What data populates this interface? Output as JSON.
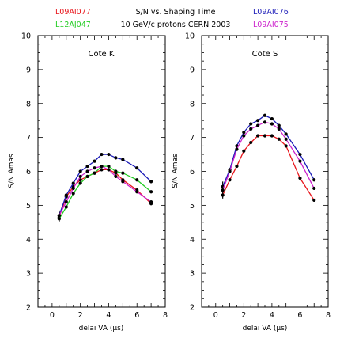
{
  "header": {
    "title": "S/N vs. Shaping Time",
    "subtitle": "10 GeV/c protons CERN 2003",
    "legend": [
      {
        "label": "L09AI077",
        "color": "#e8151b",
        "pos": "left-top"
      },
      {
        "label": "L12AJ047",
        "color": "#22cc22",
        "pos": "left-bottom"
      },
      {
        "label": "L09AI076",
        "color": "#1b1bb8",
        "pos": "right-top"
      },
      {
        "label": "L09AI075",
        "color": "#cc22cc",
        "pos": "right-bottom"
      }
    ]
  },
  "chart_data": [
    {
      "type": "line",
      "title": "Cote K",
      "xlabel": "delai VA (µs)",
      "ylabel": "S/N Amas",
      "xlim": [
        -1,
        8
      ],
      "ylim": [
        2,
        10
      ],
      "xticks": [
        0,
        2,
        4,
        6,
        8
      ],
      "yticks": [
        2,
        3,
        4,
        5,
        6,
        7,
        8,
        9,
        10
      ],
      "grid": false,
      "series": [
        {
          "name": "L09AI077",
          "color": "#e8151b",
          "x": [
            0.5,
            1.0,
            1.5,
            2.0,
            2.5,
            3.0,
            3.5,
            4.0,
            4.5,
            5.0,
            6.0,
            7.0
          ],
          "y": [
            4.65,
            5.25,
            5.55,
            5.75,
            5.85,
            5.95,
            6.05,
            6.05,
            5.95,
            5.75,
            5.45,
            5.05
          ]
        },
        {
          "name": "L12AJ047",
          "color": "#22cc22",
          "x": [
            0.5,
            1.0,
            1.5,
            2.0,
            2.5,
            3.0,
            3.5,
            4.0,
            4.5,
            5.0,
            6.0,
            7.0
          ],
          "y": [
            4.6,
            4.95,
            5.35,
            5.65,
            5.85,
            5.95,
            6.15,
            6.15,
            6.0,
            5.95,
            5.75,
            5.4
          ]
        },
        {
          "name": "L09AI076",
          "color": "#1b1bb8",
          "x": [
            0.5,
            1.0,
            1.5,
            2.0,
            2.5,
            3.0,
            3.5,
            4.0,
            4.5,
            5.0,
            6.0,
            7.0
          ],
          "y": [
            4.7,
            5.3,
            5.65,
            6.0,
            6.15,
            6.3,
            6.5,
            6.5,
            6.4,
            6.35,
            6.1,
            5.7
          ]
        },
        {
          "name": "L09AI075",
          "color": "#cc22cc",
          "x": [
            0.5,
            1.0,
            1.5,
            2.0,
            2.5,
            3.0,
            3.5,
            4.0,
            4.5,
            5.0,
            6.0,
            7.0
          ],
          "y": [
            4.7,
            5.1,
            5.5,
            5.85,
            6.0,
            6.1,
            6.15,
            6.05,
            5.85,
            5.7,
            5.4,
            5.1
          ]
        }
      ]
    },
    {
      "type": "line",
      "title": "Cote S",
      "xlabel": "delai VA (µs)",
      "ylabel": "S/N Amas",
      "xlim": [
        -1,
        8
      ],
      "ylim": [
        2,
        10
      ],
      "xticks": [
        0,
        2,
        4,
        6,
        8
      ],
      "yticks": [
        2,
        3,
        4,
        5,
        6,
        7,
        8,
        9,
        10
      ],
      "grid": false,
      "series": [
        {
          "name": "L09AI077",
          "color": "#e8151b",
          "x": [
            0.5,
            1.0,
            1.5,
            2.0,
            2.5,
            3.0,
            3.5,
            4.0,
            4.5,
            5.0,
            6.0,
            7.0
          ],
          "y": [
            5.3,
            5.75,
            6.15,
            6.6,
            6.85,
            7.05,
            7.05,
            7.05,
            6.95,
            6.75,
            5.8,
            5.15
          ]
        },
        {
          "name": "L09AI076",
          "color": "#1b1bb8",
          "x": [
            0.5,
            1.0,
            1.5,
            2.0,
            2.5,
            3.0,
            3.5,
            4.0,
            4.5,
            5.0,
            6.0,
            7.0
          ],
          "y": [
            5.55,
            6.05,
            6.75,
            7.15,
            7.4,
            7.5,
            7.65,
            7.55,
            7.35,
            7.1,
            6.5,
            5.75
          ]
        },
        {
          "name": "L09AI075",
          "color": "#cc22cc",
          "x": [
            0.5,
            1.0,
            1.5,
            2.0,
            2.5,
            3.0,
            3.5,
            4.0,
            4.5,
            5.0,
            6.0,
            7.0
          ],
          "y": [
            5.45,
            6.0,
            6.65,
            7.05,
            7.25,
            7.35,
            7.45,
            7.4,
            7.25,
            6.95,
            6.3,
            5.5
          ]
        }
      ]
    }
  ]
}
